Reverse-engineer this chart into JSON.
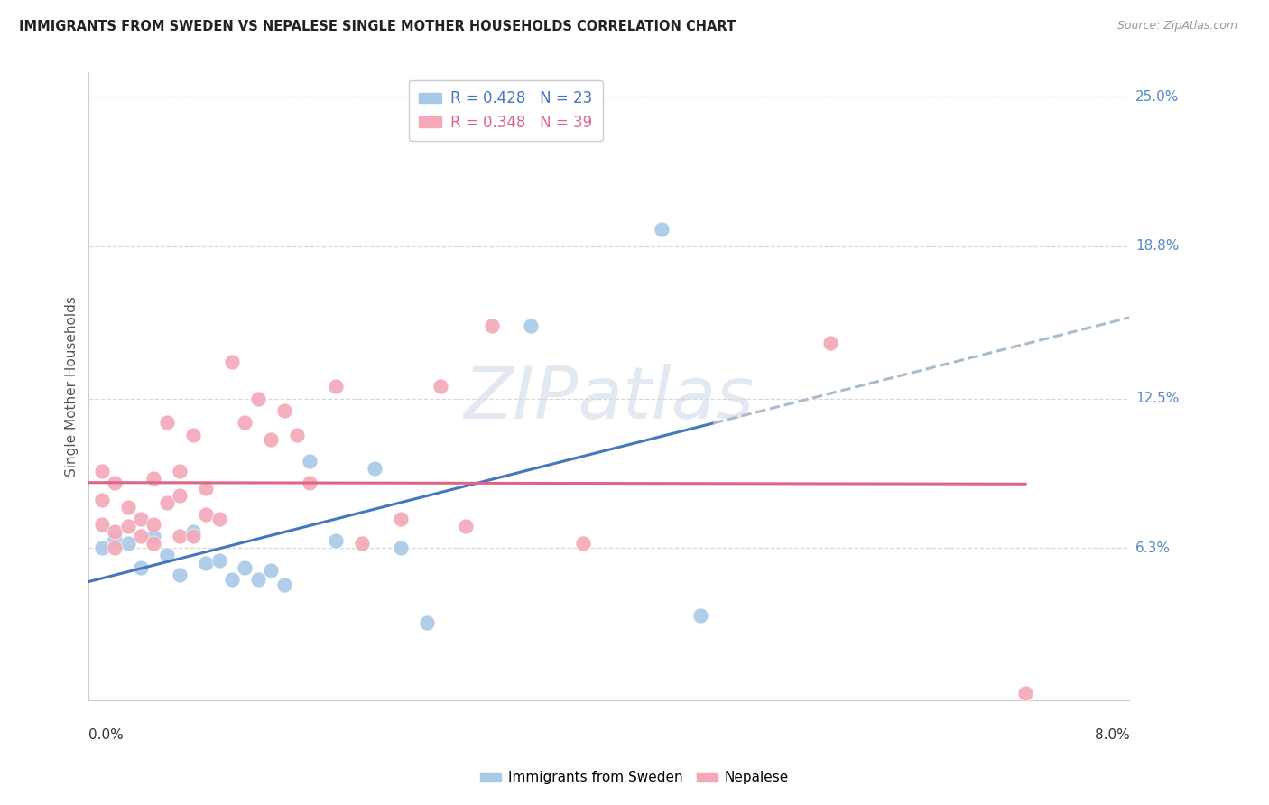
{
  "title": "IMMIGRANTS FROM SWEDEN VS NEPALESE SINGLE MOTHER HOUSEHOLDS CORRELATION CHART",
  "source": "Source: ZipAtlas.com",
  "ylabel": "Single Mother Households",
  "xlim": [
    0.0,
    0.08
  ],
  "ylim": [
    0.0,
    0.26
  ],
  "yticks": [
    0.063,
    0.125,
    0.188,
    0.25
  ],
  "yticklabels": [
    "6.3%",
    "12.5%",
    "18.8%",
    "25.0%"
  ],
  "blue_R": "0.428",
  "blue_N": "23",
  "pink_R": "0.348",
  "pink_N": "39",
  "legend_label_blue": "Immigrants from Sweden",
  "legend_label_pink": "Nepalese",
  "blue_color": "#a8c8e8",
  "pink_color": "#f4a8b8",
  "blue_scatter_x": [
    0.001,
    0.002,
    0.003,
    0.004,
    0.005,
    0.006,
    0.007,
    0.008,
    0.009,
    0.01,
    0.011,
    0.012,
    0.013,
    0.014,
    0.015,
    0.017,
    0.019,
    0.022,
    0.024,
    0.026,
    0.034,
    0.044,
    0.047
  ],
  "blue_scatter_y": [
    0.063,
    0.067,
    0.065,
    0.055,
    0.068,
    0.06,
    0.052,
    0.07,
    0.057,
    0.058,
    0.05,
    0.055,
    0.05,
    0.054,
    0.048,
    0.099,
    0.066,
    0.096,
    0.063,
    0.032,
    0.155,
    0.195,
    0.035
  ],
  "pink_scatter_x": [
    0.001,
    0.001,
    0.001,
    0.002,
    0.002,
    0.002,
    0.003,
    0.003,
    0.004,
    0.004,
    0.005,
    0.005,
    0.005,
    0.006,
    0.006,
    0.007,
    0.007,
    0.007,
    0.008,
    0.008,
    0.009,
    0.009,
    0.01,
    0.011,
    0.012,
    0.013,
    0.014,
    0.015,
    0.016,
    0.017,
    0.019,
    0.021,
    0.024,
    0.027,
    0.029,
    0.031,
    0.038,
    0.057,
    0.072
  ],
  "pink_scatter_y": [
    0.095,
    0.083,
    0.073,
    0.09,
    0.07,
    0.063,
    0.08,
    0.072,
    0.068,
    0.075,
    0.092,
    0.073,
    0.065,
    0.115,
    0.082,
    0.068,
    0.085,
    0.095,
    0.068,
    0.11,
    0.077,
    0.088,
    0.075,
    0.14,
    0.115,
    0.125,
    0.108,
    0.12,
    0.11,
    0.09,
    0.13,
    0.065,
    0.075,
    0.13,
    0.072,
    0.155,
    0.065,
    0.148,
    0.003
  ],
  "watermark_text": "ZIPatlas",
  "background_color": "#ffffff",
  "grid_color": "#d8d8d8",
  "blue_line_color": "#4477bb",
  "pink_line_color": "#dd6688",
  "blue_dash_color": "#aabbcc"
}
